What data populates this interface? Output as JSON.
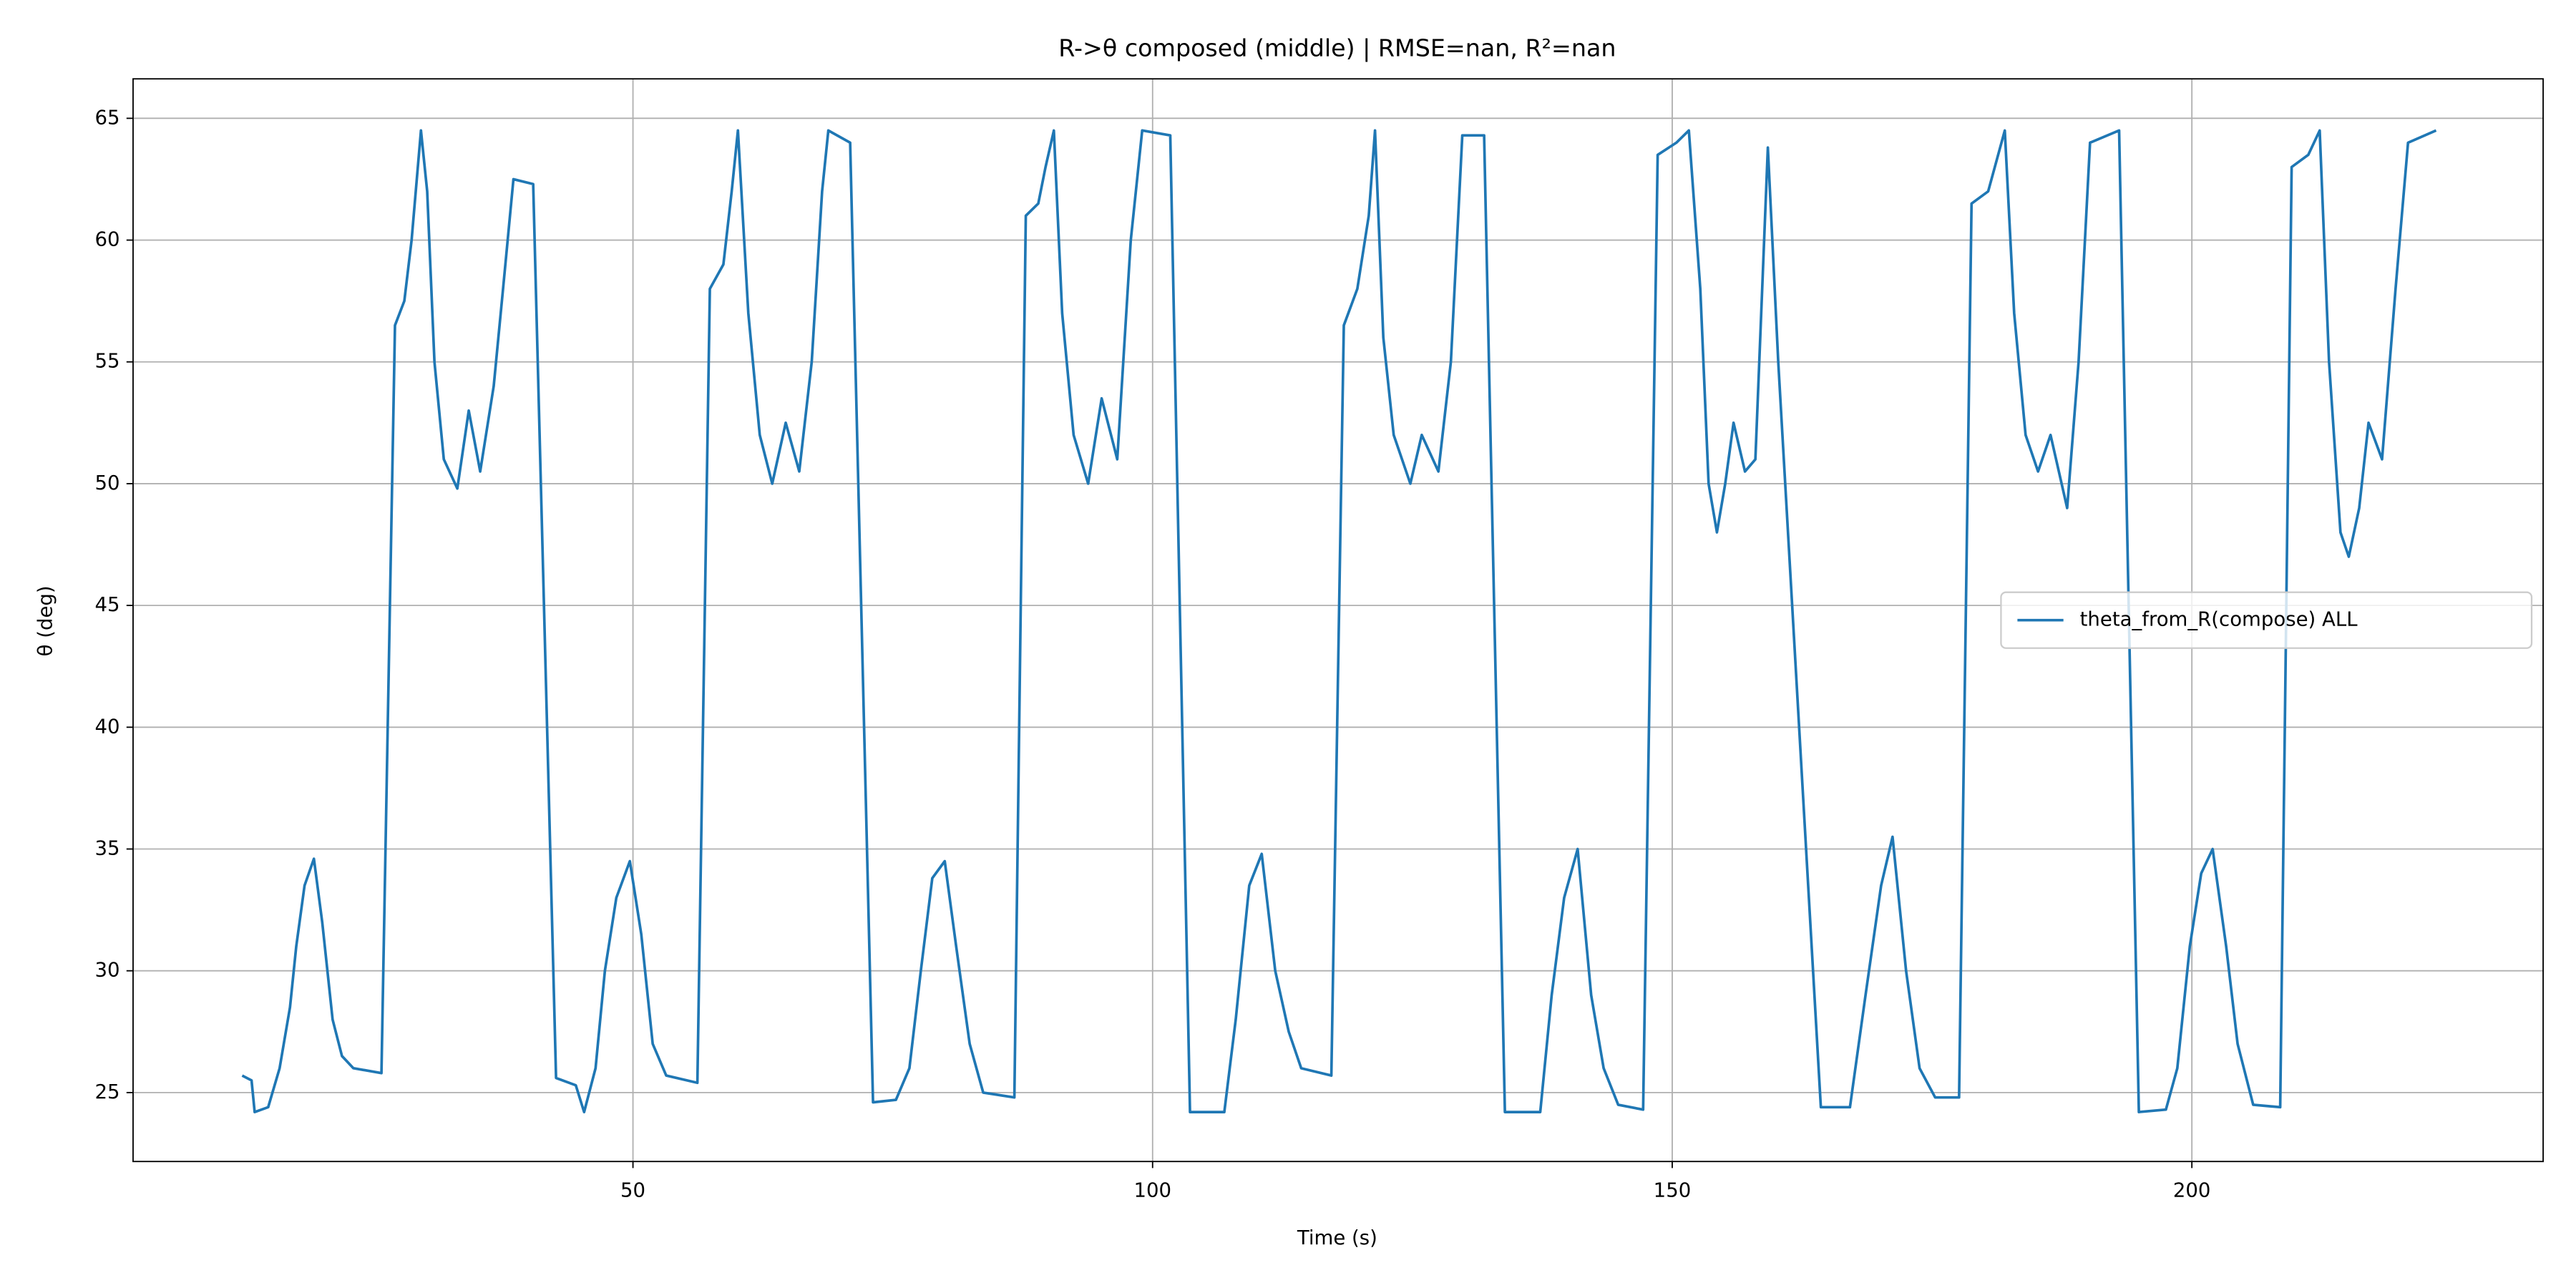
{
  "chart_data": {
    "type": "line",
    "title": "R->θ composed (middle) | RMSE=nan, R²=nan",
    "x_label": "Time (s)",
    "y_label": "θ (deg)",
    "xlim": [
      1.9,
      233.8
    ],
    "ylim": [
      22.17,
      66.62
    ],
    "xticks": [
      50,
      100,
      150,
      200
    ],
    "yticks": [
      25,
      30,
      35,
      40,
      45,
      50,
      55,
      60,
      65
    ],
    "grid": true,
    "legend": "center right",
    "x": [
      12.4,
      13.3,
      13.6,
      14.9,
      16.0,
      17.0,
      17.6,
      18.4,
      19.3,
      20.1,
      21.1,
      22.0,
      23.1,
      25.8,
      27.1,
      28.0,
      28.7,
      29.6,
      30.2,
      30.9,
      31.8,
      33.1,
      34.2,
      35.3,
      36.6,
      37.5,
      38.5,
      40.4,
      42.6,
      44.5,
      45.3,
      46.4,
      47.3,
      48.4,
      49.7,
      50.8,
      51.9,
      53.2,
      56.2,
      57.4,
      58.7,
      59.5,
      60.1,
      61.1,
      62.2,
      63.4,
      64.7,
      66.0,
      67.2,
      68.2,
      68.8,
      70.9,
      73.1,
      75.3,
      76.6,
      77.7,
      78.8,
      80.0,
      81.1,
      82.4,
      83.7,
      86.7,
      87.8,
      89.0,
      89.7,
      90.5,
      91.3,
      92.4,
      93.8,
      95.1,
      96.6,
      97.9,
      99.0,
      101.7,
      103.6,
      106.9,
      108.0,
      109.3,
      110.5,
      111.8,
      113.1,
      114.3,
      117.2,
      118.4,
      119.7,
      120.8,
      121.4,
      122.2,
      123.2,
      124.8,
      125.9,
      127.5,
      128.7,
      129.8,
      131.9,
      133.9,
      137.3,
      138.4,
      139.6,
      140.9,
      142.2,
      143.4,
      144.8,
      147.2,
      148.6,
      150.4,
      151.6,
      152.7,
      153.5,
      154.3,
      155.1,
      155.9,
      157.0,
      158.0,
      159.2,
      160.2,
      164.3,
      167.1,
      168.6,
      170.1,
      171.2,
      172.5,
      173.8,
      175.3,
      177.6,
      178.8,
      180.4,
      182.0,
      182.9,
      184.0,
      185.2,
      186.4,
      188.0,
      189.1,
      190.2,
      193.0,
      194.9,
      197.5,
      198.6,
      199.8,
      200.9,
      202.0,
      203.3,
      204.4,
      205.9,
      208.5,
      209.6,
      211.2,
      212.3,
      213.2,
      214.3,
      215.1,
      216.1,
      217.0,
      218.3,
      219.6,
      220.8,
      223.5
    ],
    "series": [
      {
        "name": "theta_from_R(compose) ALL",
        "color": "#1f77b4",
        "values": [
          25.7,
          25.5,
          24.2,
          24.4,
          26,
          28.5,
          31,
          33.5,
          34.6,
          32,
          28,
          26.5,
          26,
          25.8,
          56.5,
          57.5,
          60,
          64.5,
          62,
          55,
          51,
          49.8,
          53,
          50.5,
          54,
          58,
          62.5,
          62.3,
          25.6,
          25.3,
          24.2,
          26,
          30,
          33,
          34.5,
          31.5,
          27,
          25.7,
          25.4,
          58,
          59,
          62,
          64.5,
          57,
          52,
          50,
          52.5,
          50.5,
          55,
          62,
          64.5,
          64,
          24.6,
          24.7,
          26,
          30,
          33.8,
          34.5,
          31,
          27,
          25,
          24.8,
          61,
          61.5,
          63,
          64.5,
          57,
          52,
          50,
          53.5,
          51,
          60,
          64.5,
          64.3,
          24.2,
          24.2,
          28,
          33.5,
          34.8,
          30,
          27.5,
          26,
          25.7,
          56.5,
          58,
          61,
          64.5,
          56,
          52,
          50,
          52,
          50.5,
          55,
          64.3,
          64.3,
          24.2,
          24.2,
          29,
          33,
          35,
          29,
          26,
          24.5,
          24.3,
          63.5,
          64,
          64.5,
          58,
          50,
          48,
          50,
          52.5,
          50.5,
          51,
          63.8,
          55,
          24.4,
          24.4,
          29,
          33.5,
          35.5,
          30,
          26,
          24.8,
          24.8,
          61.5,
          62,
          64.5,
          57,
          52,
          50.5,
          52,
          49,
          55,
          64,
          64.5,
          24.2,
          24.3,
          26,
          31,
          34,
          35,
          31,
          27,
          24.5,
          24.4,
          63,
          63.5,
          64.5,
          55,
          48,
          47,
          49,
          52.5,
          51,
          58,
          64,
          64.5
        ]
      }
    ]
  }
}
